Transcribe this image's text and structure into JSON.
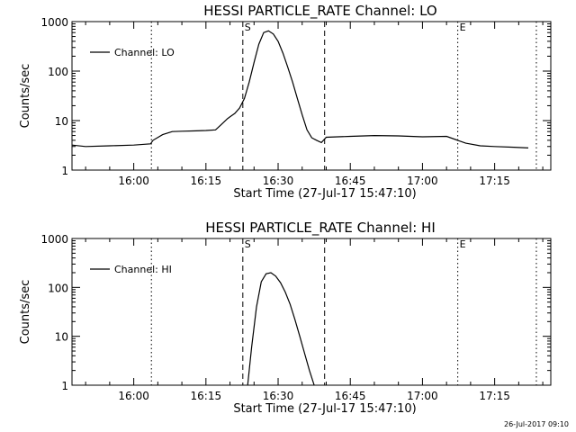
{
  "footer": {
    "timestamp": "26-Jul-2017 09:10"
  },
  "chart_data": [
    {
      "type": "line",
      "title": "HESSI PARTICLE_RATE Channel: LO",
      "xlabel": "Start Time (27-Jul-17 15:47:10)",
      "ylabel": "Counts/sec",
      "yscale": "log",
      "ylim": [
        1,
        1000
      ],
      "yticks": [
        1,
        10,
        100,
        1000
      ],
      "ytick_labels": [
        "1",
        "10",
        "100",
        "1000"
      ],
      "xlim": [
        "15:47:10",
        "17:26:40"
      ],
      "xticks": [
        "16:00",
        "16:15",
        "16:30",
        "16:45",
        "17:00",
        "17:15"
      ],
      "legend": {
        "label": "Channel: LO",
        "location": "top-left"
      },
      "markers": [
        {
          "label": "S",
          "time": "16:22:40",
          "style": "dashed"
        },
        {
          "label": "",
          "time": "16:39:40",
          "style": "dashed"
        },
        {
          "label": "E",
          "time": "17:07:20",
          "style": "dotted"
        },
        {
          "label": "",
          "time": "16:03:40",
          "style": "dotted"
        },
        {
          "label": "",
          "time": "17:23:40",
          "style": "dotted"
        }
      ],
      "series": [
        {
          "name": "Channel: LO",
          "x": [
            "15:47:10",
            "15:50:00",
            "15:55:00",
            "16:00:00",
            "16:03:30",
            "16:04:00",
            "16:06:00",
            "16:08:00",
            "16:10:00",
            "16:13:00",
            "16:15:00",
            "16:17:00",
            "16:18:00",
            "16:19:30",
            "16:21:00",
            "16:22:00",
            "16:23:00",
            "16:24:00",
            "16:25:00",
            "16:26:00",
            "16:27:00",
            "16:28:00",
            "16:29:00",
            "16:30:00",
            "16:31:00",
            "16:32:00",
            "16:33:00",
            "16:34:00",
            "16:35:00",
            "16:36:00",
            "16:37:00",
            "16:38:00",
            "16:39:00",
            "16:40:00",
            "16:45:00",
            "16:50:00",
            "16:55:00",
            "17:00:00",
            "17:05:00",
            "17:09:00",
            "17:12:00",
            "17:15:00",
            "17:19:00",
            "17:22:00"
          ],
          "y": [
            3.2,
            3.0,
            3.1,
            3.2,
            3.4,
            4.0,
            5.2,
            6.0,
            6.1,
            6.2,
            6.3,
            6.5,
            8.0,
            11,
            14,
            18,
            28,
            60,
            150,
            350,
            600,
            650,
            560,
            400,
            230,
            120,
            60,
            28,
            13,
            6.5,
            4.5,
            4.0,
            3.6,
            4.6,
            4.8,
            5.0,
            4.9,
            4.7,
            4.8,
            3.5,
            3.1,
            3.0,
            2.9,
            2.8
          ]
        }
      ]
    },
    {
      "type": "line",
      "title": "HESSI PARTICLE_RATE Channel: HI",
      "xlabel": "Start Time (27-Jul-17 15:47:10)",
      "ylabel": "Counts/sec",
      "yscale": "log",
      "ylim": [
        1,
        1000
      ],
      "yticks": [
        1,
        10,
        100,
        1000
      ],
      "ytick_labels": [
        "1",
        "10",
        "100",
        "1000"
      ],
      "xlim": [
        "15:47:10",
        "17:26:40"
      ],
      "xticks": [
        "16:00",
        "16:15",
        "16:30",
        "16:45",
        "17:00",
        "17:15"
      ],
      "legend": {
        "label": "Channel: HI",
        "location": "top-left"
      },
      "markers": [
        {
          "label": "S",
          "time": "16:22:40",
          "style": "dashed"
        },
        {
          "label": "",
          "time": "16:39:40",
          "style": "dashed"
        },
        {
          "label": "E",
          "time": "17:07:20",
          "style": "dotted"
        },
        {
          "label": "",
          "time": "16:03:40",
          "style": "dotted"
        },
        {
          "label": "",
          "time": "17:23:40",
          "style": "dotted"
        }
      ],
      "series": [
        {
          "name": "Channel: HI",
          "x": [
            "16:23:40",
            "16:24:30",
            "16:25:30",
            "16:26:30",
            "16:27:30",
            "16:28:30",
            "16:29:30",
            "16:30:30",
            "16:31:30",
            "16:32:30",
            "16:33:30",
            "16:34:30",
            "16:35:30",
            "16:36:30",
            "16:37:30"
          ],
          "y": [
            1.0,
            6.0,
            40,
            130,
            190,
            200,
            170,
            125,
            80,
            45,
            22,
            10,
            4.5,
            2.0,
            1.0
          ]
        }
      ]
    }
  ]
}
